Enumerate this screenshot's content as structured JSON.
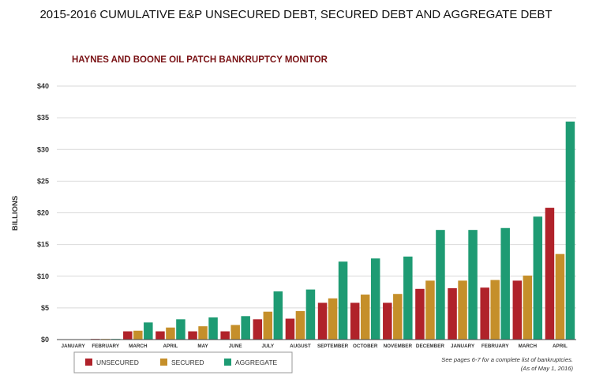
{
  "colors": {
    "unsecured": "#b0222a",
    "secured": "#c58f2a",
    "aggregate": "#1e9b73",
    "subtitle": "#7a1316"
  },
  "chart_data": {
    "type": "bar",
    "title": "2015-2016 CUMULATIVE E&P UNSECURED DEBT, SECURED DEBT AND AGGREGATE DEBT",
    "subtitle": "HAYNES AND BOONE OIL PATCH BANKRUPTCY MONITOR",
    "ylabel": "BILLIONS",
    "xlabel": "",
    "ylim": [
      0,
      40
    ],
    "yticks": [
      0,
      5,
      10,
      15,
      20,
      25,
      30,
      35,
      40
    ],
    "ytick_labels": [
      "$0",
      "$5",
      "$10",
      "$15",
      "$20",
      "$25",
      "$30",
      "$35",
      "$40"
    ],
    "grid": true,
    "categories": [
      "JANUARY",
      "FEBRUARY",
      "MARCH",
      "APRIL",
      "MAY",
      "JUNE",
      "JULY",
      "AUGUST",
      "SEPTEMBER",
      "OCTOBER",
      "NOVEMBER",
      "DECEMBER",
      "JANUARY",
      "FEBRUARY",
      "MARCH",
      "APRIL"
    ],
    "series": [
      {
        "name": "UNSECURED",
        "color_key": "unsecured",
        "values": [
          0,
          0.1,
          1.3,
          1.3,
          1.3,
          1.3,
          3.2,
          3.3,
          5.8,
          5.8,
          5.8,
          8.0,
          8.1,
          8.2,
          9.3,
          20.8
        ]
      },
      {
        "name": "SECURED",
        "color_key": "secured",
        "values": [
          0,
          0.1,
          1.4,
          1.9,
          2.1,
          2.3,
          4.4,
          4.5,
          6.5,
          7.1,
          7.2,
          9.3,
          9.3,
          9.4,
          10.1,
          13.5
        ]
      },
      {
        "name": "AGGREGATE",
        "color_key": "aggregate",
        "values": [
          0,
          0.1,
          2.7,
          3.2,
          3.5,
          3.7,
          7.6,
          7.9,
          12.3,
          12.8,
          13.1,
          17.3,
          17.3,
          17.6,
          19.4,
          34.4
        ]
      }
    ],
    "legend_position": "bottom-left",
    "annotation": {
      "line1": "See pages 6-7 for a complete list of bankruptcies.",
      "line2": "(As of May 1, 2016)"
    }
  }
}
